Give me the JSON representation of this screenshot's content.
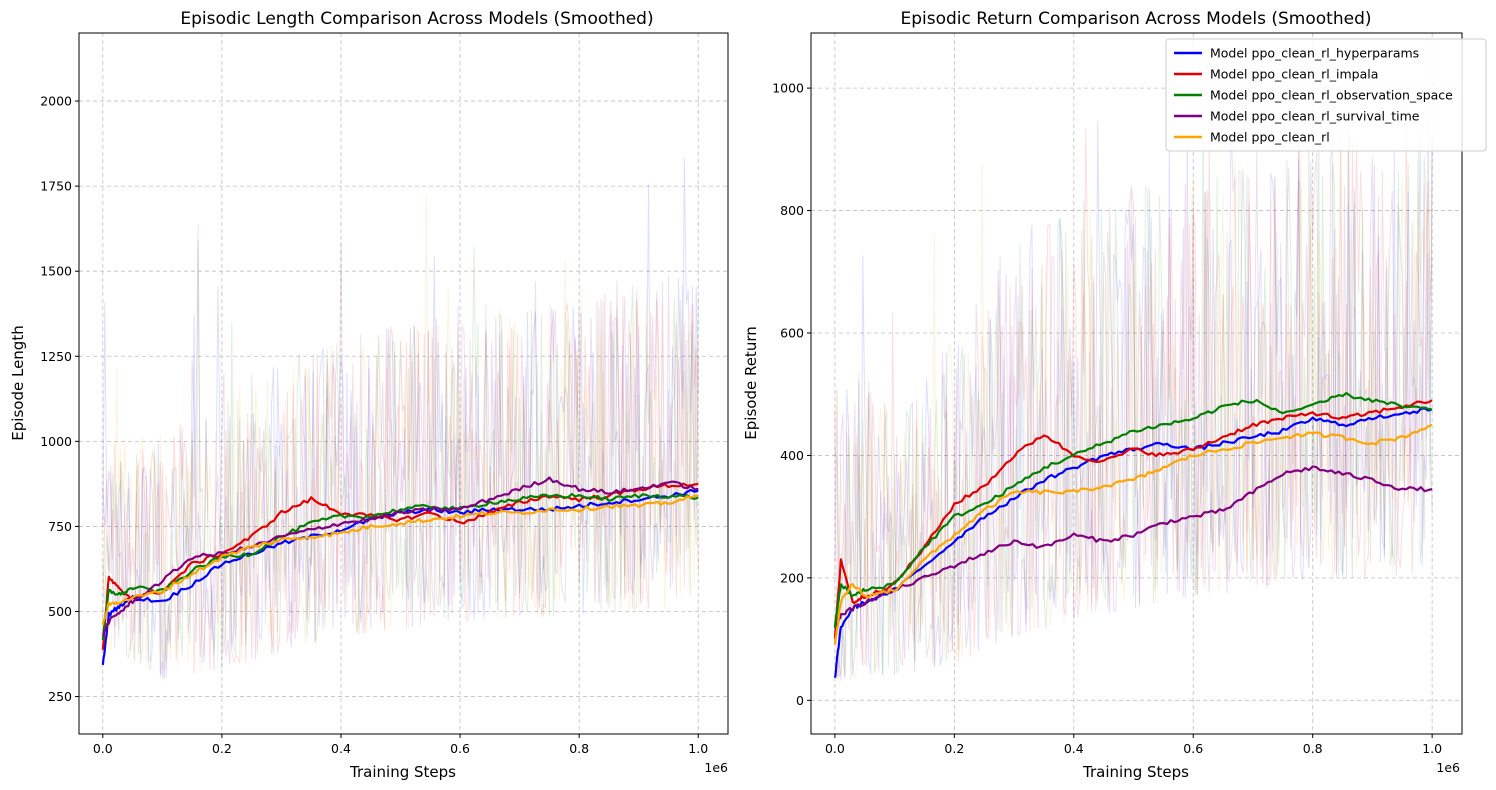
{
  "chart_data": [
    {
      "type": "line",
      "title": "Episodic Length Comparison Across Models (Smoothed)",
      "xlabel": "Training Steps",
      "ylabel": "Episode Length",
      "x_offset_label": "1e6",
      "xlim": [
        -0.04,
        1.05
      ],
      "ylim": [
        140,
        2200
      ],
      "xticks": [
        0.0,
        0.2,
        0.4,
        0.6,
        0.8,
        1.0
      ],
      "xtick_labels": [
        "0.0",
        "0.2",
        "0.4",
        "0.6",
        "0.8",
        "1.0"
      ],
      "yticks": [
        250,
        500,
        750,
        1000,
        1250,
        1500,
        1750,
        2000
      ],
      "ytick_labels": [
        "250",
        "500",
        "750",
        "1000",
        "1250",
        "1500",
        "1750",
        "2000"
      ],
      "grid": true,
      "raw_band": {
        "low": [
          400,
          300,
          330,
          380,
          420,
          450,
          470,
          480,
          490,
          500,
          510
        ],
        "high": [
          1000,
          1050,
          1150,
          1250,
          1300,
          1350,
          1400,
          1420,
          1450,
          1480,
          1500
        ]
      },
      "series": [
        {
          "key": "hyperparams",
          "color": "#0000ff",
          "x": [
            0.0,
            0.01,
            0.03,
            0.05,
            0.1,
            0.15,
            0.2,
            0.25,
            0.3,
            0.35,
            0.4,
            0.45,
            0.5,
            0.55,
            0.6,
            0.65,
            0.7,
            0.75,
            0.8,
            0.85,
            0.9,
            0.95,
            1.0
          ],
          "y": [
            340,
            490,
            520,
            540,
            530,
            580,
            640,
            670,
            700,
            720,
            740,
            770,
            790,
            800,
            790,
            800,
            800,
            800,
            810,
            820,
            830,
            840,
            855
          ]
        },
        {
          "key": "impala",
          "color": "#e00000",
          "x": [
            0.0,
            0.01,
            0.03,
            0.05,
            0.1,
            0.15,
            0.2,
            0.25,
            0.3,
            0.35,
            0.4,
            0.45,
            0.5,
            0.55,
            0.6,
            0.65,
            0.7,
            0.75,
            0.8,
            0.85,
            0.9,
            0.95,
            1.0
          ],
          "y": [
            390,
            600,
            560,
            540,
            560,
            640,
            670,
            720,
            790,
            830,
            790,
            780,
            770,
            790,
            760,
            790,
            820,
            840,
            830,
            840,
            860,
            870,
            875
          ]
        },
        {
          "key": "observation_space",
          "color": "#008000",
          "x": [
            0.0,
            0.01,
            0.03,
            0.05,
            0.1,
            0.15,
            0.2,
            0.25,
            0.3,
            0.35,
            0.4,
            0.45,
            0.5,
            0.55,
            0.6,
            0.65,
            0.7,
            0.75,
            0.8,
            0.85,
            0.9,
            0.95,
            1.0
          ],
          "y": [
            420,
            560,
            550,
            570,
            560,
            620,
            660,
            670,
            720,
            760,
            780,
            780,
            800,
            810,
            800,
            820,
            830,
            840,
            840,
            830,
            840,
            840,
            835
          ]
        },
        {
          "key": "survival_time",
          "color": "#800080",
          "x": [
            0.0,
            0.01,
            0.03,
            0.05,
            0.1,
            0.15,
            0.2,
            0.25,
            0.3,
            0.35,
            0.4,
            0.45,
            0.5,
            0.55,
            0.6,
            0.65,
            0.7,
            0.75,
            0.8,
            0.85,
            0.9,
            0.95,
            1.0
          ],
          "y": [
            430,
            470,
            500,
            530,
            590,
            660,
            670,
            690,
            720,
            740,
            760,
            770,
            790,
            800,
            800,
            830,
            860,
            890,
            860,
            850,
            860,
            880,
            860
          ]
        },
        {
          "key": "ppo_clean_rl",
          "color": "#ffa500",
          "x": [
            0.0,
            0.01,
            0.03,
            0.05,
            0.1,
            0.15,
            0.2,
            0.25,
            0.3,
            0.35,
            0.4,
            0.45,
            0.5,
            0.55,
            0.6,
            0.65,
            0.7,
            0.75,
            0.8,
            0.85,
            0.9,
            0.95,
            1.0
          ],
          "y": [
            460,
            520,
            530,
            540,
            560,
            610,
            660,
            690,
            710,
            720,
            730,
            750,
            760,
            770,
            780,
            790,
            790,
            800,
            800,
            810,
            810,
            820,
            840
          ]
        }
      ]
    },
    {
      "type": "line",
      "title": "Episodic Return Comparison Across Models (Smoothed)",
      "xlabel": "Training Steps",
      "ylabel": "Episode Return",
      "x_offset_label": "1e6",
      "xlim": [
        -0.04,
        1.05
      ],
      "ylim": [
        -55,
        1090
      ],
      "xticks": [
        0.0,
        0.2,
        0.4,
        0.6,
        0.8,
        1.0
      ],
      "xtick_labels": [
        "0.0",
        "0.2",
        "0.4",
        "0.6",
        "0.8",
        "1.0"
      ],
      "yticks": [
        0,
        200,
        400,
        600,
        800,
        1000
      ],
      "ytick_labels": [
        "0",
        "200",
        "400",
        "600",
        "800",
        "1000"
      ],
      "grid": true,
      "raw_band": {
        "low": [
          30,
          40,
          60,
          100,
          130,
          150,
          170,
          180,
          190,
          200,
          200
        ],
        "high": [
          550,
          500,
          600,
          750,
          800,
          850,
          880,
          900,
          920,
          930,
          950
        ]
      },
      "series": [
        {
          "key": "hyperparams",
          "color": "#0000ff",
          "x": [
            0.0,
            0.01,
            0.03,
            0.05,
            0.1,
            0.15,
            0.2,
            0.25,
            0.3,
            0.35,
            0.4,
            0.45,
            0.5,
            0.55,
            0.6,
            0.65,
            0.7,
            0.75,
            0.8,
            0.85,
            0.9,
            0.95,
            1.0
          ],
          "y": [
            35,
            120,
            150,
            160,
            180,
            220,
            260,
            300,
            330,
            360,
            380,
            400,
            410,
            420,
            410,
            420,
            430,
            440,
            460,
            450,
            460,
            470,
            475
          ]
        },
        {
          "key": "impala",
          "color": "#e00000",
          "x": [
            0.0,
            0.01,
            0.03,
            0.05,
            0.1,
            0.15,
            0.2,
            0.25,
            0.3,
            0.35,
            0.4,
            0.45,
            0.5,
            0.55,
            0.6,
            0.65,
            0.7,
            0.75,
            0.8,
            0.85,
            0.9,
            0.95,
            1.0
          ],
          "y": [
            100,
            230,
            160,
            170,
            190,
            250,
            320,
            350,
            400,
            435,
            400,
            390,
            410,
            400,
            410,
            430,
            450,
            460,
            470,
            460,
            470,
            480,
            490
          ]
        },
        {
          "key": "observation_space",
          "color": "#008000",
          "x": [
            0.0,
            0.01,
            0.03,
            0.05,
            0.1,
            0.15,
            0.2,
            0.25,
            0.3,
            0.35,
            0.4,
            0.45,
            0.5,
            0.55,
            0.6,
            0.65,
            0.7,
            0.75,
            0.8,
            0.85,
            0.9,
            0.95,
            1.0
          ],
          "y": [
            120,
            190,
            170,
            180,
            190,
            250,
            300,
            320,
            350,
            380,
            400,
            420,
            440,
            450,
            460,
            480,
            490,
            470,
            480,
            500,
            490,
            480,
            475
          ]
        },
        {
          "key": "survival_time",
          "color": "#800080",
          "x": [
            0.0,
            0.01,
            0.03,
            0.05,
            0.1,
            0.15,
            0.2,
            0.25,
            0.3,
            0.35,
            0.4,
            0.45,
            0.5,
            0.55,
            0.6,
            0.65,
            0.7,
            0.75,
            0.8,
            0.85,
            0.9,
            0.95,
            1.0
          ],
          "y": [
            110,
            140,
            150,
            160,
            180,
            200,
            220,
            240,
            260,
            250,
            270,
            260,
            270,
            290,
            300,
            310,
            340,
            370,
            380,
            370,
            360,
            345,
            345
          ]
        },
        {
          "key": "ppo_clean_rl",
          "color": "#ffa500",
          "x": [
            0.0,
            0.01,
            0.03,
            0.05,
            0.1,
            0.15,
            0.2,
            0.25,
            0.3,
            0.35,
            0.4,
            0.45,
            0.5,
            0.55,
            0.6,
            0.65,
            0.7,
            0.75,
            0.8,
            0.85,
            0.9,
            0.95,
            1.0
          ],
          "y": [
            90,
            160,
            190,
            170,
            180,
            230,
            270,
            310,
            340,
            340,
            340,
            350,
            360,
            380,
            400,
            410,
            420,
            430,
            435,
            430,
            420,
            430,
            450
          ]
        }
      ],
      "legend": {
        "placement": "top-right",
        "entries": [
          {
            "label": "Model ppo_clean_rl_hyperparams",
            "color": "#0000ff"
          },
          {
            "label": "Model ppo_clean_rl_impala",
            "color": "#e00000"
          },
          {
            "label": "Model ppo_clean_rl_observation_space",
            "color": "#008000"
          },
          {
            "label": "Model ppo_clean_rl_survival_time",
            "color": "#800080"
          },
          {
            "label": "Model ppo_clean_rl",
            "color": "#ffa500"
          }
        ]
      }
    }
  ]
}
